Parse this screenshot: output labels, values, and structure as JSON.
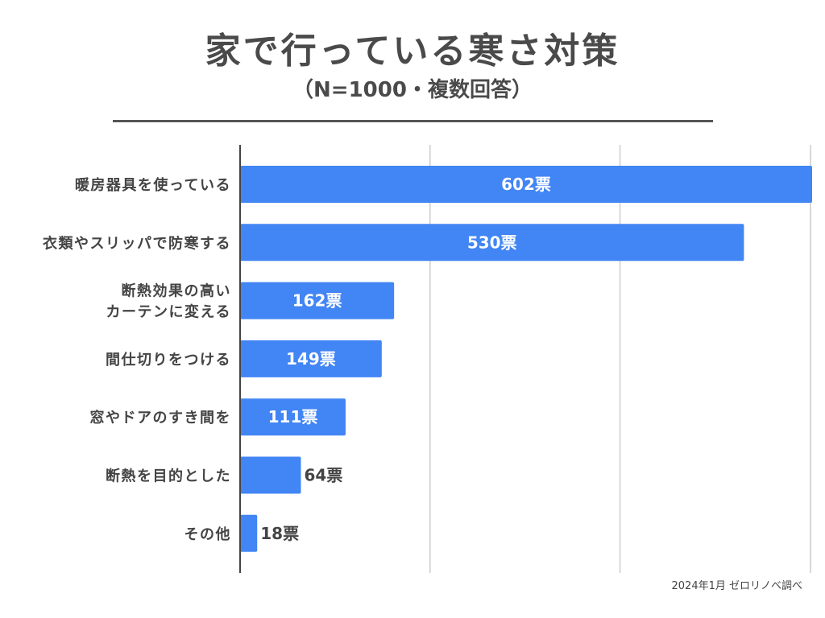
{
  "title": "家で行っている寒さ対策",
  "subtitle": "（N=1000・複数回答）",
  "source_note": "2024年1月 ゼロリノベ調べ",
  "colors": {
    "bar": "#4285f4",
    "grid": "#cccccc",
    "axis": "#444444",
    "text": "#444444"
  },
  "chart_data": {
    "type": "bar",
    "orientation": "horizontal",
    "title": "家で行っている寒さ対策",
    "subtitle": "（N=1000・複数回答）",
    "categories": [
      [
        "暖房器具を使っている"
      ],
      [
        "衣類やスリッパで防寒する"
      ],
      [
        "断熱効果の高い",
        "カーテンに変える"
      ],
      [
        "間仕切りをつける"
      ],
      [
        "窓やドアのすき間を"
      ],
      [
        "断熱を目的とした"
      ],
      [
        "その他"
      ]
    ],
    "values": [
      602,
      530,
      162,
      149,
      111,
      64,
      18
    ],
    "labels": [
      "602票",
      "530票",
      "162票",
      "149票",
      "111票",
      "64票",
      "18票"
    ],
    "unit": "票",
    "xlim": [
      0,
      600
    ],
    "grid": true,
    "xlabel": "",
    "ylabel": ""
  }
}
